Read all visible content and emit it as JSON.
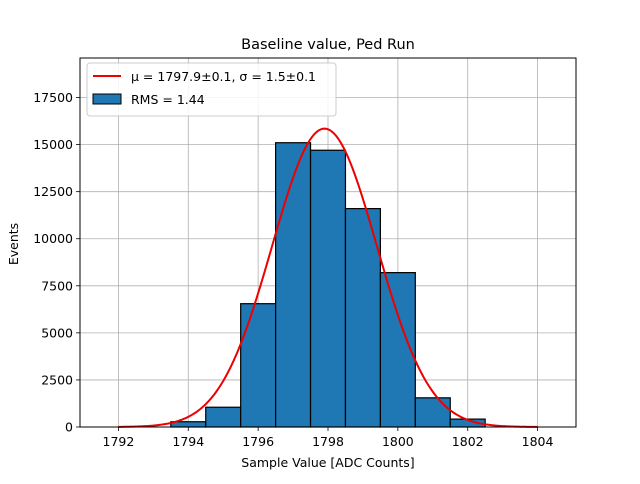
{
  "chart_data": {
    "type": "histogram",
    "title": "Baseline value, Ped Run",
    "xlabel": "Sample Value [ADC Counts]",
    "ylabel": "Events",
    "xlim": [
      1790.9,
      1805.1
    ],
    "ylim": [
      0,
      19600
    ],
    "xticks": [
      1792,
      1794,
      1796,
      1798,
      1800,
      1802,
      1804
    ],
    "yticks": [
      0,
      2500,
      5000,
      7500,
      10000,
      12500,
      15000,
      17500
    ],
    "grid": true,
    "legend_position": "upper-left",
    "bars": {
      "name": "RMS = 1.44",
      "color": "#1f77b4",
      "bins": [
        {
          "left": 1793.5,
          "right": 1794.5,
          "value": 280
        },
        {
          "left": 1794.5,
          "right": 1795.5,
          "value": 1050
        },
        {
          "left": 1795.5,
          "right": 1796.5,
          "value": 6550
        },
        {
          "left": 1796.5,
          "right": 1797.5,
          "value": 15100
        },
        {
          "left": 1797.5,
          "right": 1798.5,
          "value": 14700
        },
        {
          "left": 1798.5,
          "right": 1799.5,
          "value": 11600
        },
        {
          "left": 1799.5,
          "right": 1800.5,
          "value": 8200
        },
        {
          "left": 1800.5,
          "right": 1801.5,
          "value": 1550
        },
        {
          "left": 1801.5,
          "right": 1802.5,
          "value": 420
        }
      ]
    },
    "fit": {
      "name_prefix": "μ = 1797.9±0.1, ",
      "name_sigma": "σ = 1.5±0.1",
      "color": "#ee0000",
      "model": "gaussian",
      "amplitude": 15850,
      "mean": 1797.9,
      "sigma": 1.5,
      "x_range": [
        1792,
        1804
      ]
    }
  }
}
